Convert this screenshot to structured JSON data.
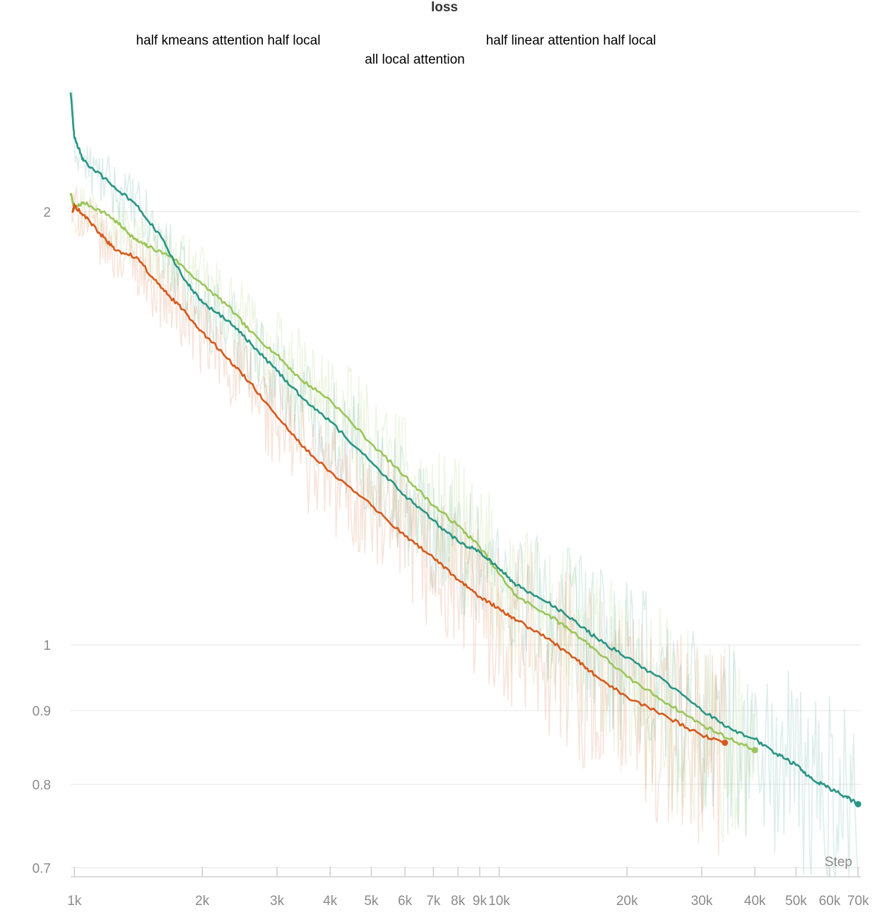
{
  "chart_data": {
    "type": "line",
    "title": "loss",
    "xlabel": "Step",
    "ylabel": "",
    "xscale": "log",
    "yscale": "log",
    "xlim": [
      980,
      71000
    ],
    "ylim": [
      0.69,
      2.45
    ],
    "grid": "horizontal",
    "legend": "top",
    "x_ticks": [
      {
        "value": 1000,
        "label": "1k"
      },
      {
        "value": 2000,
        "label": "2k"
      },
      {
        "value": 3000,
        "label": "3k"
      },
      {
        "value": 4000,
        "label": "4k"
      },
      {
        "value": 5000,
        "label": "5k"
      },
      {
        "value": 6000,
        "label": "6k"
      },
      {
        "value": 7000,
        "label": "7k"
      },
      {
        "value": 8000,
        "label": "8k"
      },
      {
        "value": 9000,
        "label": "9k"
      },
      {
        "value": 10000,
        "label": "10k"
      },
      {
        "value": 20000,
        "label": "20k"
      },
      {
        "value": 30000,
        "label": "30k"
      },
      {
        "value": 40000,
        "label": "40k"
      },
      {
        "value": 50000,
        "label": "50k"
      },
      {
        "value": 60000,
        "label": "60k"
      },
      {
        "value": 70000,
        "label": "70k"
      }
    ],
    "y_ticks": [
      {
        "value": 2,
        "label": "2"
      },
      {
        "value": 1,
        "label": "1"
      },
      {
        "value": 0.9,
        "label": "0.9"
      },
      {
        "value": 0.8,
        "label": "0.8"
      },
      {
        "value": 0.7,
        "label": "0.7"
      }
    ],
    "series": [
      {
        "name": "half kmeans attention half local",
        "color": "#9cc55a",
        "x": [
          980,
          1000,
          1050,
          1200,
          1300,
          1400,
          1500,
          1700,
          2000,
          2300,
          2600,
          3000,
          3400,
          4000,
          5000,
          6000,
          7000,
          8000,
          9000,
          10000,
          11000,
          13000,
          15000,
          17000,
          20000,
          25000,
          30000,
          35000,
          40000
        ],
        "y": [
          2.06,
          2.01,
          2.03,
          1.99,
          1.95,
          1.91,
          1.89,
          1.86,
          1.78,
          1.72,
          1.65,
          1.59,
          1.53,
          1.48,
          1.38,
          1.31,
          1.25,
          1.21,
          1.17,
          1.12,
          1.08,
          1.05,
          1.02,
          0.99,
          0.95,
          0.91,
          0.88,
          0.86,
          0.845
        ]
      },
      {
        "name": "all local attention",
        "color": "#2a9585",
        "x": [
          980,
          1000,
          1050,
          1200,
          1400,
          1600,
          1800,
          2000,
          2300,
          2600,
          3000,
          3400,
          4000,
          5000,
          6000,
          7000,
          8000,
          9000,
          10000,
          11000,
          13000,
          15000,
          17000,
          20000,
          25000,
          30000,
          35000,
          40000,
          45000,
          50000,
          55000,
          60000,
          65000,
          70000
        ],
        "y": [
          2.42,
          2.25,
          2.17,
          2.1,
          2.02,
          1.92,
          1.8,
          1.73,
          1.68,
          1.62,
          1.55,
          1.49,
          1.43,
          1.34,
          1.27,
          1.22,
          1.18,
          1.16,
          1.13,
          1.1,
          1.07,
          1.04,
          1.01,
          0.98,
          0.94,
          0.9,
          0.875,
          0.86,
          0.84,
          0.825,
          0.805,
          0.795,
          0.785,
          0.775
        ]
      },
      {
        "name": "half linear attention half local",
        "color": "#d55a1c",
        "x": [
          990,
          1000,
          1050,
          1150,
          1250,
          1400,
          1600,
          1800,
          2000,
          2300,
          2600,
          3000,
          3400,
          4000,
          5000,
          6000,
          7000,
          8000,
          9000,
          10000,
          11000,
          13000,
          15000,
          17000,
          20000,
          25000,
          30000,
          34000
        ],
        "y": [
          2.0,
          2.02,
          1.99,
          1.93,
          1.88,
          1.86,
          1.77,
          1.71,
          1.65,
          1.58,
          1.52,
          1.44,
          1.38,
          1.32,
          1.25,
          1.19,
          1.15,
          1.11,
          1.08,
          1.06,
          1.04,
          1.01,
          0.98,
          0.95,
          0.92,
          0.89,
          0.865,
          0.855
        ]
      }
    ]
  }
}
